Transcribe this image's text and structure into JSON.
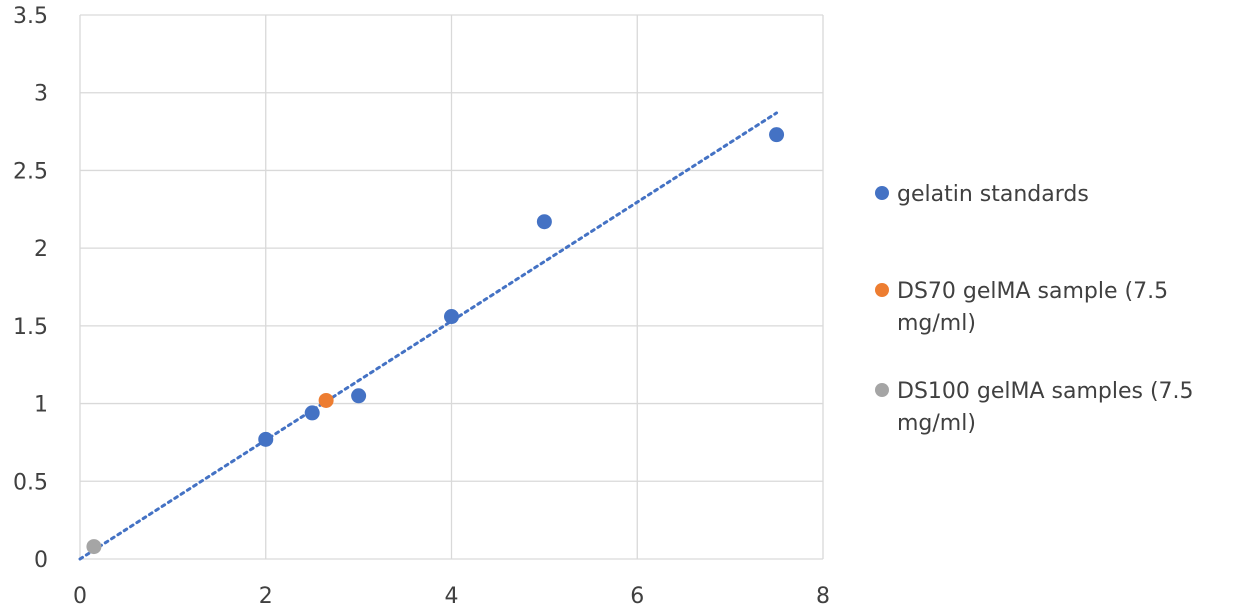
{
  "chart_data": {
    "type": "scatter",
    "title": "",
    "xlabel": "",
    "ylabel": "",
    "xlim": [
      0,
      8
    ],
    "ylim": [
      0,
      3.5
    ],
    "x_ticks": [
      "0",
      "2",
      "4",
      "6",
      "8"
    ],
    "y_ticks": [
      "0",
      "0.5",
      "1",
      "1.5",
      "2",
      "2.5",
      "3",
      "3.5"
    ],
    "grid": true,
    "legend_position": "right",
    "series": [
      {
        "name": "gelatin standards",
        "color": "#4472C4",
        "points": [
          {
            "x": 2,
            "y": 0.77
          },
          {
            "x": 2.5,
            "y": 0.94
          },
          {
            "x": 3,
            "y": 1.05
          },
          {
            "x": 4,
            "y": 1.56
          },
          {
            "x": 5,
            "y": 2.17
          },
          {
            "x": 7.5,
            "y": 2.73
          }
        ]
      },
      {
        "name": "DS70 gelMA sample (7.5 mg/ml)",
        "legend_lines": [
          "DS70 gelMA sample (7.5",
          "mg/ml)"
        ],
        "color": "#ED7D31",
        "points": [
          {
            "x": 2.65,
            "y": 1.02
          }
        ]
      },
      {
        "name": "DS100 gelMA samples (7.5 mg/ml)",
        "legend_lines": [
          "DS100 gelMA samples (7.5",
          "mg/ml)"
        ],
        "color": "#A5A5A5",
        "points": [
          {
            "x": 0.15,
            "y": 0.08
          }
        ]
      }
    ],
    "trendline": {
      "type": "linear",
      "style": "dotted",
      "color": "#4472C4",
      "from": {
        "x": 0,
        "y": 0
      },
      "to": {
        "x": 7.5,
        "y": 2.87
      }
    }
  }
}
